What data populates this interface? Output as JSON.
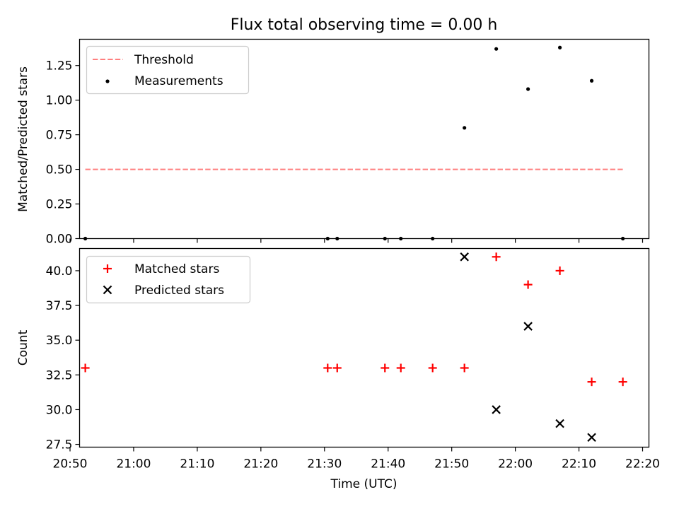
{
  "figure": {
    "title": "Flux total observing time = 0.00 h",
    "xlabel": "Time (UTC)"
  },
  "chart_data": [
    {
      "type": "scatter",
      "ylabel": "Matched/Predicted stars",
      "xlim": [
        "20:51:30",
        "22:21:00"
      ],
      "ylim": [
        0,
        1.44
      ],
      "yticks": [
        "0.00",
        "0.25",
        "0.50",
        "0.75",
        "1.00",
        "1.25"
      ],
      "ytick_values": [
        0,
        0.25,
        0.5,
        0.75,
        1.0,
        1.25
      ],
      "legend_position": "upper-left",
      "series": [
        {
          "name": "Threshold",
          "style": "dashed-line",
          "color": "#ff7f7f",
          "x": [
            "20:52:24",
            "22:16:54"
          ],
          "y": [
            0.5,
            0.5
          ]
        },
        {
          "name": "Measurements",
          "style": "dot",
          "color": "#000000",
          "x": [
            "20:52:24",
            "21:30:30",
            "21:32:00",
            "21:39:30",
            "21:42:00",
            "21:47:00",
            "21:52:00",
            "21:57:00",
            "22:02:00",
            "22:07:00",
            "22:12:00",
            "22:16:54"
          ],
          "y": [
            0,
            0,
            0,
            0,
            0,
            0,
            0.8,
            1.37,
            1.08,
            1.38,
            1.14,
            0
          ]
        }
      ]
    },
    {
      "type": "scatter",
      "ylabel": "Count",
      "xlim": [
        "20:51:30",
        "22:21:00"
      ],
      "ylim": [
        27.3,
        41.6
      ],
      "yticks": [
        "27.5",
        "30.0",
        "32.5",
        "35.0",
        "37.5",
        "40.0"
      ],
      "ytick_values": [
        27.5,
        30.0,
        32.5,
        35.0,
        37.5,
        40.0
      ],
      "xticks": [
        "20:50",
        "21:00",
        "21:10",
        "21:20",
        "21:30",
        "21:40",
        "21:50",
        "22:00",
        "22:10",
        "22:20"
      ],
      "xtick_values": [
        "20:50:00",
        "21:00:00",
        "21:10:00",
        "21:20:00",
        "21:30:00",
        "21:40:00",
        "21:50:00",
        "22:00:00",
        "22:10:00",
        "22:20:00"
      ],
      "legend_position": "upper-left",
      "series": [
        {
          "name": "Matched stars",
          "style": "plus",
          "color": "#ff0000",
          "x": [
            "20:52:24",
            "21:30:30",
            "21:32:00",
            "21:39:30",
            "21:42:00",
            "21:47:00",
            "21:52:00",
            "21:57:00",
            "22:02:00",
            "22:07:00",
            "22:12:00",
            "22:16:54"
          ],
          "y": [
            33,
            33,
            33,
            33,
            33,
            33,
            33,
            41,
            39,
            40,
            32,
            32
          ]
        },
        {
          "name": "Predicted stars",
          "style": "x",
          "color": "#000000",
          "x": [
            "21:52:00",
            "21:57:00",
            "22:02:00",
            "22:07:00",
            "22:12:00"
          ],
          "y": [
            41,
            30,
            36,
            29,
            28
          ]
        }
      ]
    }
  ]
}
